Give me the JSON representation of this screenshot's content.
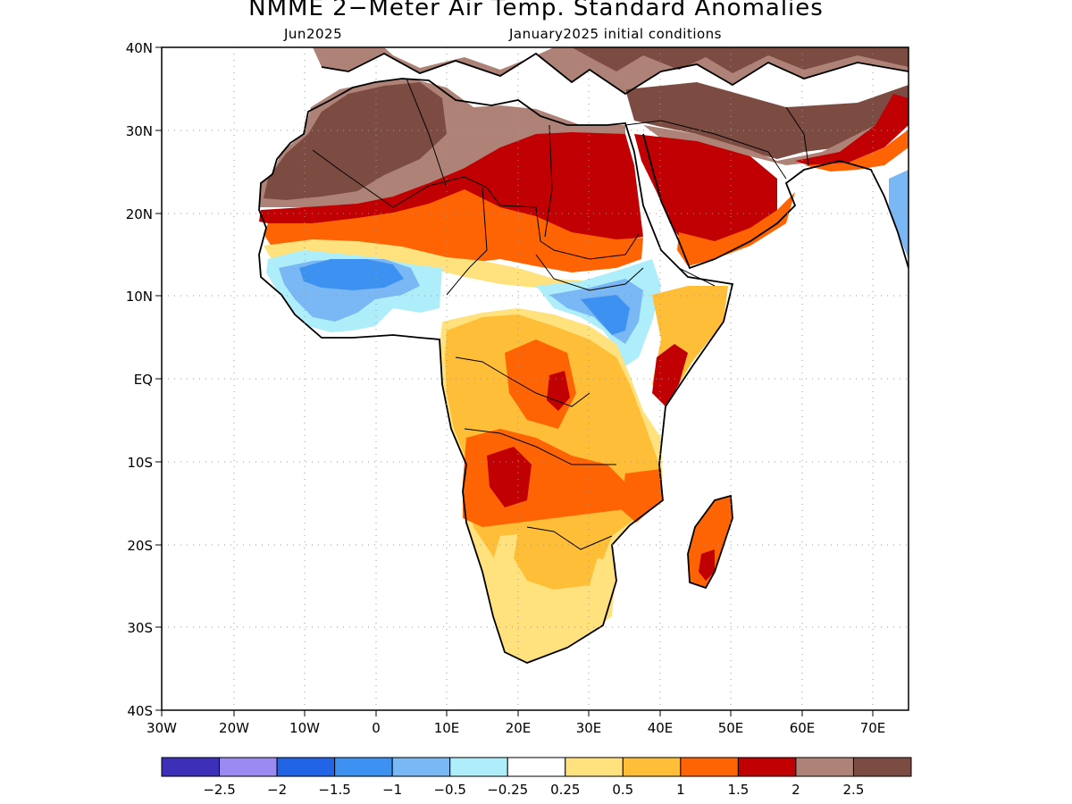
{
  "title": "NMME 2−Meter Air Temp. Standard Anomalies",
  "subtitle_left": "Jun2025",
  "subtitle_right": "January2025 initial conditions",
  "lat_ticks": [
    "40N",
    "30N",
    "20N",
    "10N",
    "EQ",
    "10S",
    "20S",
    "30S",
    "40S"
  ],
  "lon_ticks": [
    "30W",
    "20W",
    "10W",
    "0",
    "10E",
    "20E",
    "30E",
    "40E",
    "50E",
    "60E",
    "70E"
  ],
  "colorbar": {
    "colors": [
      "#3d2fb8",
      "#9b8af2",
      "#2164e6",
      "#3d91f0",
      "#79b7f5",
      "#aeeefa",
      "#ffffff",
      "#ffe27e",
      "#ffbe38",
      "#fe6304",
      "#c00003",
      "#ae8276",
      "#7c4c42"
    ],
    "labels": [
      "−2.5",
      "−2",
      "−1.5",
      "−1",
      "−0.5",
      "−0.25",
      "0.25",
      "0.5",
      "1",
      "1.5",
      "2",
      "2.5"
    ]
  }
}
